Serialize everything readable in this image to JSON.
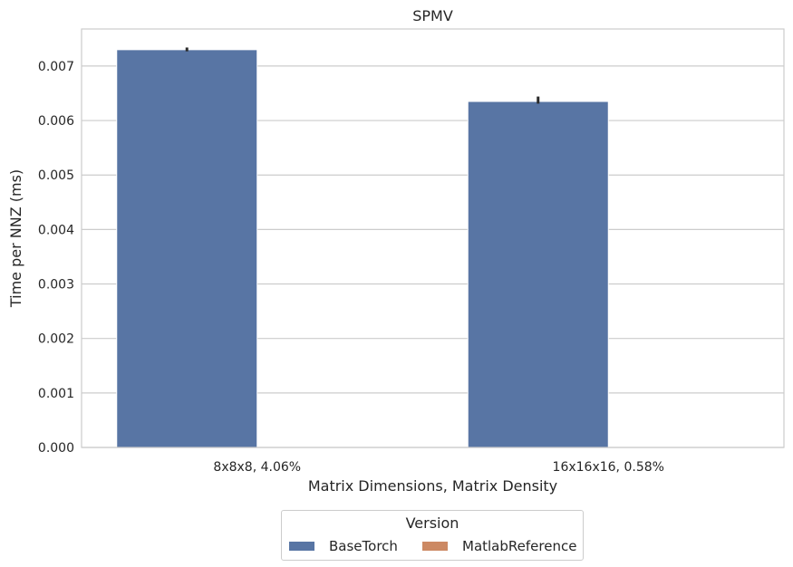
{
  "chart_data": {
    "type": "bar",
    "title": "SPMV",
    "xlabel": "Matrix Dimensions, Matrix Density",
    "ylabel": "Time per NNZ (ms)",
    "categories": [
      "8x8x8, 4.06%",
      "16x16x16, 0.58%"
    ],
    "ylim": [
      0,
      0.00768
    ],
    "yticks": [
      "0.000",
      "0.001",
      "0.002",
      "0.003",
      "0.004",
      "0.005",
      "0.006",
      "0.007"
    ],
    "grid": "horizontal",
    "legend_position": "bottom-center",
    "series": [
      {
        "name": "BaseTorch",
        "color": "#5875a4",
        "values": [
          0.0073,
          0.00635
        ],
        "error": [
          [
            0.00727,
            0.00734
          ],
          [
            0.00631,
            0.00644
          ]
        ]
      },
      {
        "name": "MatlabReference",
        "color": "#cc8963",
        "values": [
          0,
          0
        ]
      }
    ]
  },
  "legend": {
    "title": "Version",
    "items": [
      "BaseTorch",
      "MatlabReference"
    ]
  }
}
